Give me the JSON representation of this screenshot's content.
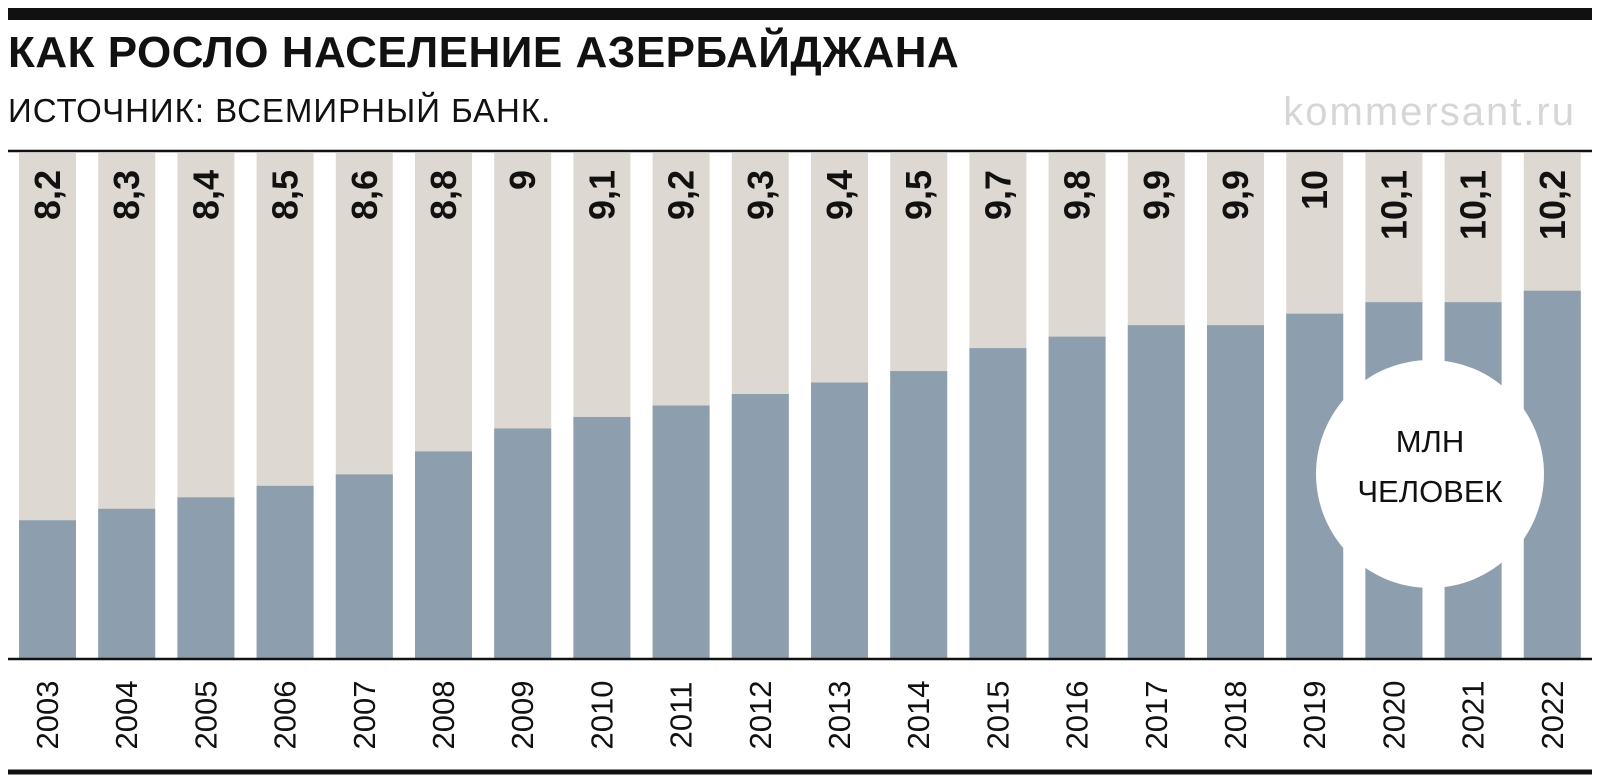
{
  "header": {
    "title": "КАК РОСЛО НАСЕЛЕНИЕ АЗЕРБАЙДЖАНА",
    "source": "ИСТОЧНИК: ВСЕМИРНЫЙ БАНК.",
    "brand": "kommersant.ru"
  },
  "unit_badge": {
    "line1": "МЛН",
    "line2": "ЧЕЛОВЕК"
  },
  "colors": {
    "bar": "#8d9fae",
    "background_column": "#ddd8d2",
    "text": "#111111"
  },
  "chart_data": {
    "type": "bar",
    "categories": [
      "2003",
      "2004",
      "2005",
      "2006",
      "2007",
      "2008",
      "2009",
      "2010",
      "2011",
      "2012",
      "2013",
      "2014",
      "2015",
      "2016",
      "2017",
      "2018",
      "2019",
      "2020",
      "2021",
      "2022"
    ],
    "values": [
      8.2,
      8.3,
      8.4,
      8.5,
      8.6,
      8.8,
      9.0,
      9.1,
      9.2,
      9.3,
      9.4,
      9.5,
      9.7,
      9.8,
      9.9,
      9.9,
      10.0,
      10.1,
      10.1,
      10.2
    ],
    "value_labels": [
      "8,2",
      "8,3",
      "8,4",
      "8,5",
      "8,6",
      "8,8",
      "9",
      "9,1",
      "9,2",
      "9,3",
      "9,4",
      "9,5",
      "9,7",
      "9,8",
      "9,9",
      "9,9",
      "10",
      "10,1",
      "10,1",
      "10,2"
    ],
    "ylim": [
      7,
      11.4
    ],
    "grid": false,
    "legend": "none"
  }
}
